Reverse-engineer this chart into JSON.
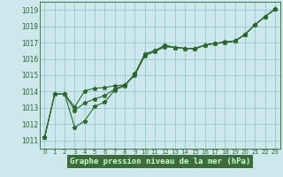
{
  "title": "Graphe pression niveau de la mer (hPa)",
  "bg_color": "#cce8ec",
  "grid_color": "#99cdd4",
  "line_color": "#2d6629",
  "bottom_bg": "#4d7a4d",
  "xlim": [
    -0.5,
    23.5
  ],
  "ylim": [
    1010.5,
    1019.5
  ],
  "yticks": [
    1011,
    1012,
    1013,
    1014,
    1015,
    1016,
    1017,
    1018,
    1019
  ],
  "xticks": [
    0,
    1,
    2,
    3,
    4,
    5,
    6,
    7,
    8,
    9,
    10,
    11,
    12,
    13,
    14,
    15,
    16,
    17,
    18,
    19,
    20,
    21,
    22,
    23
  ],
  "series1_x": [
    0,
    1,
    2,
    3,
    4,
    5,
    6,
    7,
    8,
    9,
    10,
    11,
    12,
    13,
    14,
    15,
    16,
    17,
    18,
    19,
    20,
    21,
    22,
    23
  ],
  "series1_y": [
    1011.2,
    1013.85,
    1013.85,
    1011.8,
    1012.2,
    1013.1,
    1013.35,
    1014.1,
    1014.35,
    1015.1,
    1016.3,
    1016.5,
    1016.85,
    1016.7,
    1016.65,
    1016.65,
    1016.85,
    1016.95,
    1017.05,
    1017.1,
    1017.5,
    1018.1,
    1018.6,
    1019.05
  ],
  "series2_x": [
    0,
    1,
    2,
    3,
    4,
    5,
    6,
    7,
    8,
    9,
    10,
    11,
    12,
    13,
    14,
    15,
    16,
    17,
    18,
    19,
    20,
    21,
    22,
    23
  ],
  "series2_y": [
    1011.2,
    1013.85,
    1013.85,
    1012.85,
    1013.3,
    1013.55,
    1013.75,
    1014.15,
    1014.4,
    1015.05,
    1016.3,
    1016.5,
    1016.8,
    1016.7,
    1016.65,
    1016.65,
    1016.85,
    1016.95,
    1017.0,
    1017.1,
    1017.5,
    1018.1,
    1018.6,
    1019.05
  ],
  "series3_x": [
    0,
    1,
    2,
    3,
    4,
    5,
    6,
    7,
    8,
    9,
    10,
    11,
    12,
    13,
    14,
    15,
    16,
    17,
    18,
    19,
    20,
    21,
    22,
    23
  ],
  "series3_y": [
    1011.2,
    1013.85,
    1013.85,
    1013.05,
    1014.05,
    1014.2,
    1014.25,
    1014.35,
    1014.4,
    1015.0,
    1016.2,
    1016.45,
    1016.75,
    1016.7,
    1016.65,
    1016.6,
    1016.85,
    1016.95,
    1017.0,
    1017.1,
    1017.5,
    1018.1,
    1018.6,
    1019.05
  ]
}
